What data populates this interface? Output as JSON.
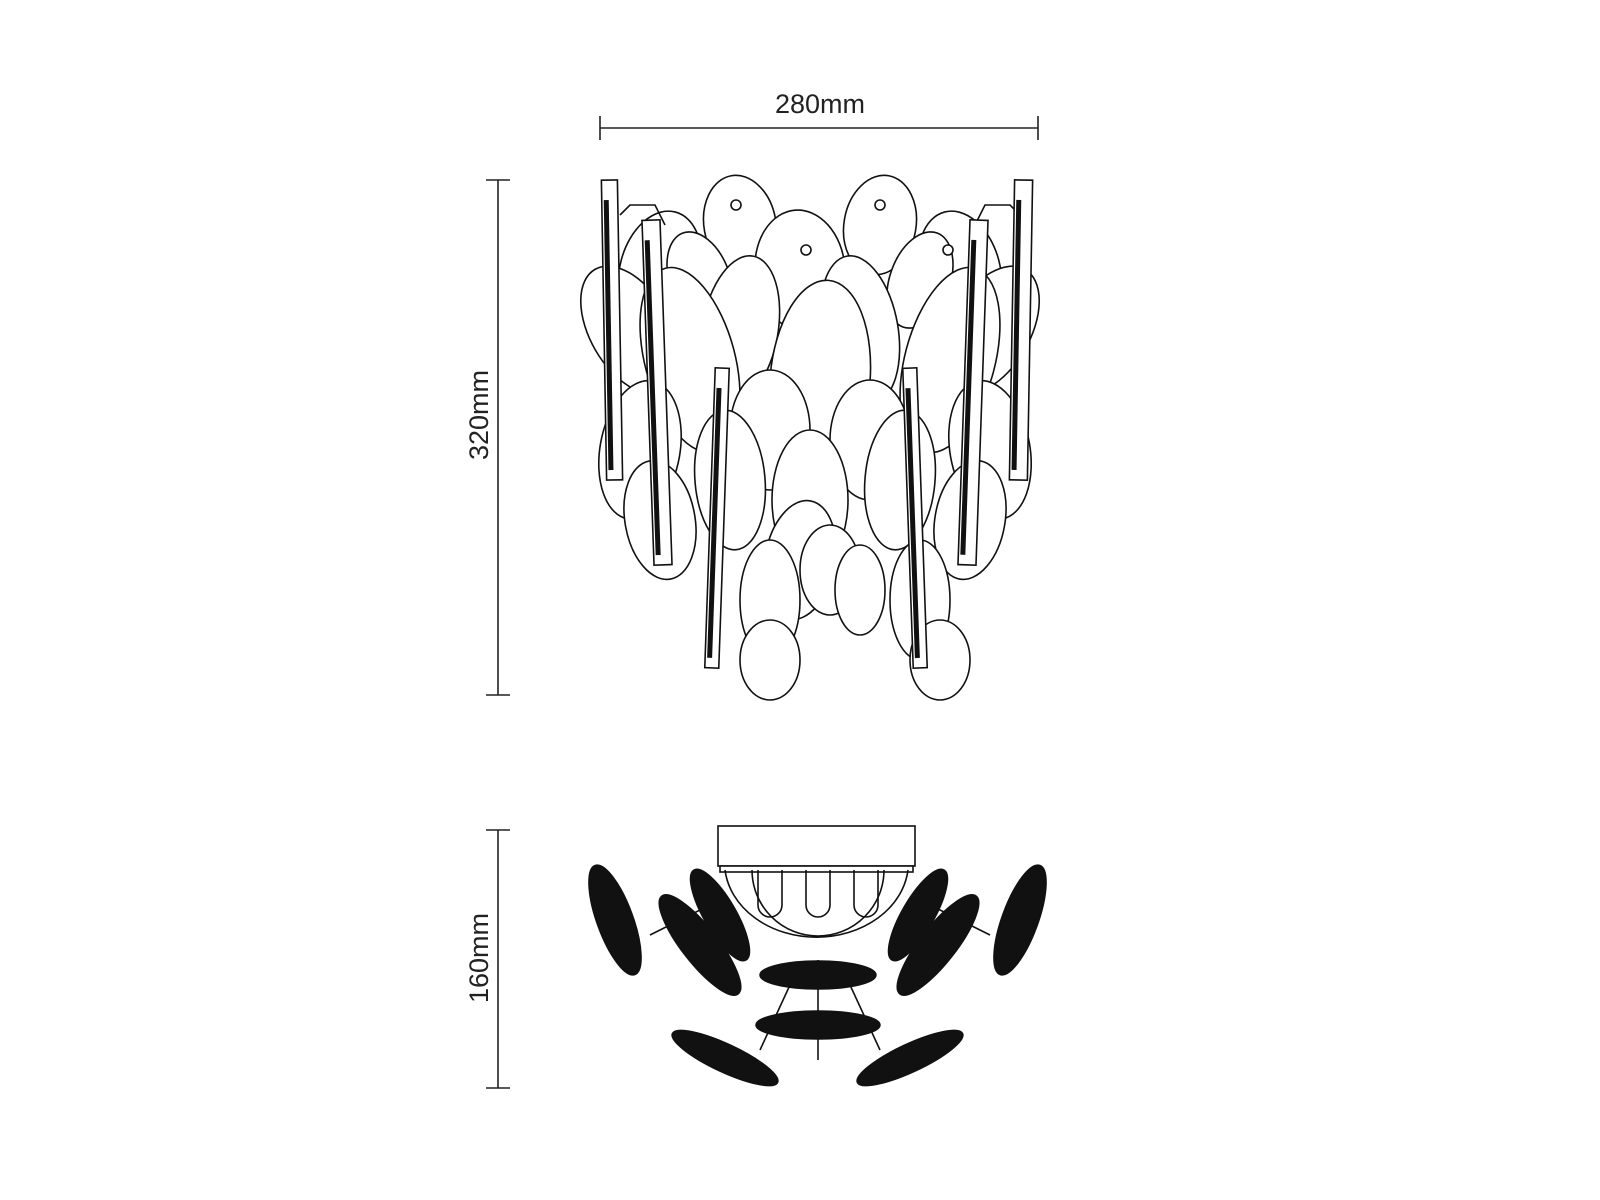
{
  "dimensions": {
    "width": "280mm",
    "height": "320mm",
    "depth": "160mm"
  },
  "views": [
    "front-elevation",
    "top-plan"
  ],
  "colors": {
    "line": "#111111",
    "background": "#ffffff"
  }
}
